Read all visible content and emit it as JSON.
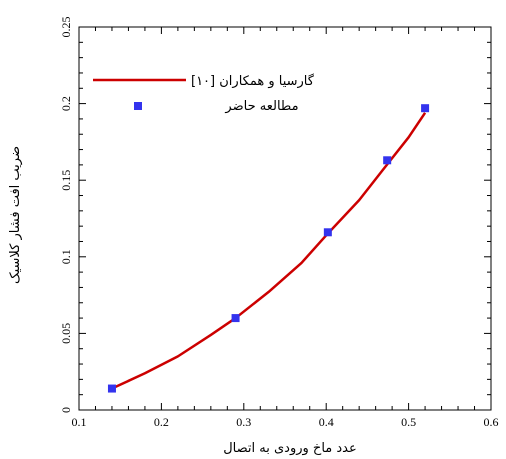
{
  "chart_data": {
    "type": "scatter",
    "xlabel": "عدد ماخ ورودی به اتصال",
    "ylabel": "ضریب افت فشار کلاسیک",
    "xlim": [
      0.1,
      0.6
    ],
    "ylim": [
      0,
      0.25
    ],
    "x_ticks": [
      "0.1",
      "0.2",
      "0.3",
      "0.4",
      "0.5",
      "0.6"
    ],
    "y_ticks": [
      "0",
      "0.05",
      "0.1",
      "0.15",
      "0.2",
      "0.25"
    ],
    "grid": false,
    "legend_position": "top-left",
    "series": [
      {
        "name": "گارسیا و همکاران [۱۰]",
        "kind": "line",
        "color": "#cc0000",
        "x": [
          0.14,
          0.18,
          0.22,
          0.26,
          0.29,
          0.33,
          0.37,
          0.4,
          0.44,
          0.475,
          0.5,
          0.52
        ],
        "y": [
          0.014,
          0.024,
          0.035,
          0.049,
          0.06,
          0.077,
          0.096,
          0.114,
          0.137,
          0.161,
          0.178,
          0.194
        ]
      },
      {
        "name": "مطالعه حاضر",
        "kind": "marker",
        "color": "#3333ee",
        "x": [
          0.14,
          0.29,
          0.402,
          0.474,
          0.52
        ],
        "y": [
          0.014,
          0.06,
          0.116,
          0.163,
          0.197
        ]
      }
    ]
  }
}
